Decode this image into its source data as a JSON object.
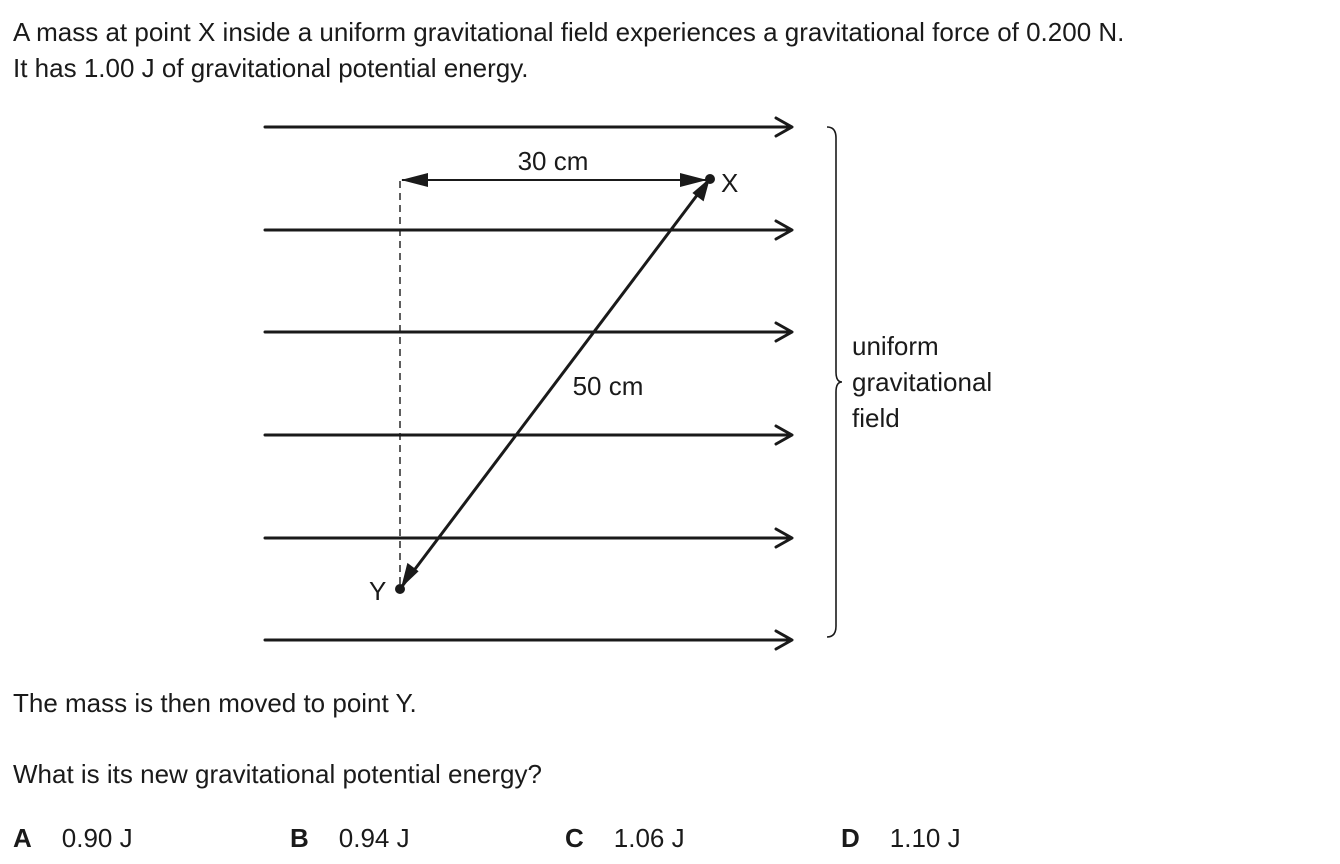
{
  "question": {
    "intro_line1": "A mass at point X inside a uniform gravitational field experiences a gravitational force of 0.200 N.",
    "intro_line2": "It has 1.00 J of gravitational potential energy.",
    "moved_text": "The mass is then moved to point Y.",
    "prompt": "What is its new gravitational potential energy?"
  },
  "diagram": {
    "horizontal_distance_label": "30 cm",
    "diagonal_distance_label": "50 cm",
    "point_x_label": "X",
    "point_y_label": "Y",
    "field_label_line1": "uniform",
    "field_label_line2": "gravitational",
    "field_label_line3": "field",
    "field_line_count": 6,
    "stroke_color": "#1a1a1a"
  },
  "options": [
    {
      "letter": "A",
      "value": "0.90 J"
    },
    {
      "letter": "B",
      "value": "0.94 J"
    },
    {
      "letter": "C",
      "value": "1.06 J"
    },
    {
      "letter": "D",
      "value": "1.10 J"
    }
  ]
}
